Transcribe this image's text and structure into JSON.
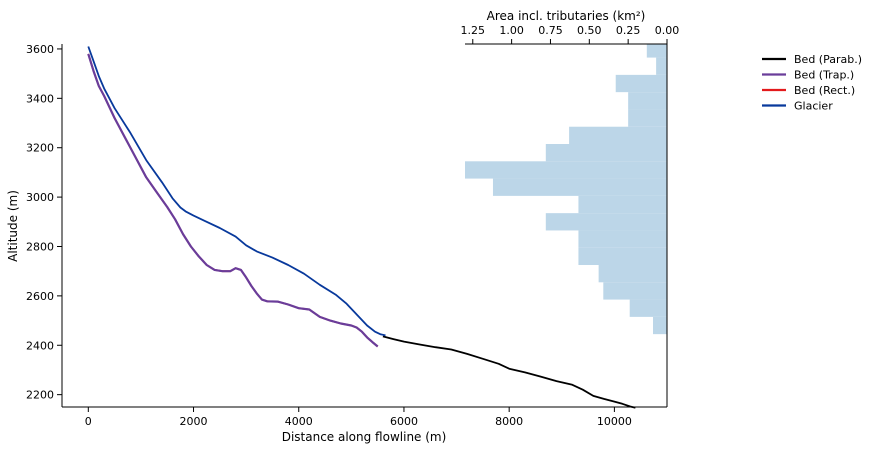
{
  "chart_data": {
    "type": "line",
    "xlabel": "Distance along flowline (m)",
    "ylabel": "Altitude (m)",
    "xlim": [
      -500,
      11000
    ],
    "ylim": [
      2150,
      3620
    ],
    "xticks": [
      0,
      2000,
      4000,
      6000,
      8000,
      10000
    ],
    "yticks": [
      2200,
      2400,
      2600,
      2800,
      3000,
      3200,
      3400,
      3600
    ],
    "xtick_labels": [
      "0",
      "2000",
      "4000",
      "6000",
      "8000",
      "10000"
    ],
    "ytick_labels": [
      "2200",
      "2400",
      "2600",
      "2800",
      "3000",
      "3200",
      "3400",
      "3600"
    ],
    "legend": {
      "placement": "upper-right-outside",
      "entries": [
        {
          "label": "Bed (Parab.)",
          "color": "#000000"
        },
        {
          "label": "Bed (Trap.)",
          "color": "#6a3d9a"
        },
        {
          "label": "Bed (Rect.)",
          "color": "#e31a1c"
        },
        {
          "label": "Glacier",
          "color": "#08399c"
        }
      ]
    },
    "series": [
      {
        "name": "Bed (Parab.)",
        "color": "#000000",
        "x": [
          5600,
          5800,
          6000,
          6300,
          6600,
          6900,
          7200,
          7500,
          7800,
          8000,
          8300,
          8600,
          8900,
          9200,
          9400,
          9600,
          9800,
          10000,
          10150,
          10300,
          10400
        ],
        "y": [
          2436,
          2425,
          2415,
          2403,
          2392,
          2383,
          2365,
          2345,
          2325,
          2305,
          2290,
          2273,
          2255,
          2240,
          2220,
          2195,
          2183,
          2172,
          2163,
          2152,
          2147
        ]
      },
      {
        "name": "Bed (Trap.)",
        "color": "#6a3d9a",
        "x": [
          0,
          100,
          200,
          300,
          500,
          700,
          900,
          1100,
          1300,
          1500,
          1650,
          1800,
          1950,
          2100,
          2250,
          2400,
          2550,
          2700,
          2800,
          2900,
          3000,
          3100,
          3200,
          3300,
          3400,
          3600,
          3800,
          4000,
          4200,
          4400,
          4600,
          4800,
          5000,
          5100,
          5200,
          5300,
          5400,
          5500
        ],
        "y": [
          3580,
          3510,
          3450,
          3410,
          3320,
          3240,
          3160,
          3080,
          3020,
          2960,
          2910,
          2850,
          2800,
          2760,
          2725,
          2705,
          2700,
          2700,
          2712,
          2705,
          2675,
          2640,
          2610,
          2585,
          2578,
          2577,
          2565,
          2550,
          2545,
          2515,
          2500,
          2488,
          2480,
          2472,
          2455,
          2432,
          2413,
          2395
        ]
      },
      {
        "name": "Bed (Rect.)",
        "color": "#e31a1c",
        "x": [
          0,
          100,
          200,
          300,
          500,
          700,
          900,
          1100,
          1300,
          1500,
          1650,
          1800,
          1950,
          2100,
          2250,
          2400,
          2550,
          2700,
          2800,
          2900,
          3000,
          3100,
          3200,
          3300,
          3400,
          3600,
          3800,
          4000,
          4200,
          4400,
          4600,
          4800,
          5000,
          5100,
          5200,
          5300,
          5400,
          5500
        ],
        "y": [
          3580,
          3510,
          3450,
          3410,
          3320,
          3240,
          3160,
          3080,
          3020,
          2960,
          2910,
          2850,
          2800,
          2760,
          2725,
          2705,
          2700,
          2700,
          2712,
          2705,
          2675,
          2640,
          2610,
          2585,
          2578,
          2577,
          2565,
          2550,
          2545,
          2515,
          2500,
          2488,
          2480,
          2472,
          2455,
          2432,
          2413,
          2395
        ]
      },
      {
        "name": "Glacier",
        "color": "#08399c",
        "x": [
          0,
          100,
          200,
          300,
          500,
          800,
          1100,
          1400,
          1600,
          1750,
          1850,
          2000,
          2200,
          2500,
          2800,
          3000,
          3200,
          3500,
          3800,
          4100,
          4400,
          4700,
          4900,
          5100,
          5300,
          5450,
          5550,
          5650
        ],
        "y": [
          3610,
          3550,
          3490,
          3440,
          3360,
          3260,
          3150,
          3060,
          2995,
          2958,
          2942,
          2925,
          2905,
          2875,
          2840,
          2805,
          2780,
          2755,
          2725,
          2690,
          2645,
          2605,
          2570,
          2525,
          2480,
          2455,
          2445,
          2440
        ]
      }
    ],
    "histogram": {
      "xlabel": "Area incl. tributaries (km²)",
      "xlim": [
        1.3,
        0.0
      ],
      "xticks": [
        1.25,
        1.0,
        0.75,
        0.5,
        0.25,
        0.0
      ],
      "xtick_labels": [
        "1.25",
        "1.00",
        "0.75",
        "0.50",
        "0.25",
        "0.00"
      ],
      "color": "#bcd6e8",
      "bin_width": 70,
      "bins_bottom": [
        2445,
        2515,
        2585,
        2655,
        2725,
        2795,
        2865,
        2935,
        3005,
        3075,
        3145,
        3215,
        3285,
        3355,
        3425,
        3495,
        3565
      ],
      "areas": [
        0.09,
        0.24,
        0.41,
        0.44,
        0.57,
        0.57,
        0.78,
        0.57,
        1.12,
        1.3,
        0.78,
        0.63,
        0.25,
        0.25,
        0.33,
        0.07,
        0.13
      ]
    }
  }
}
